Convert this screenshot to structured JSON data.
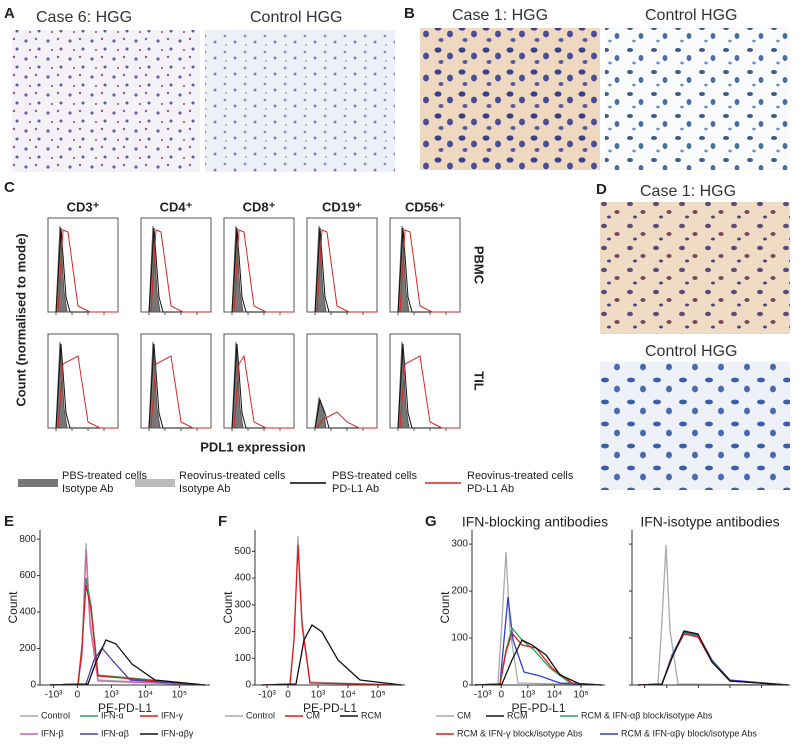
{
  "panel_labels": [
    "A",
    "B",
    "C",
    "D",
    "E",
    "F",
    "G"
  ],
  "A": {
    "titles": [
      "Case 6: HGG",
      "Control HGG"
    ]
  },
  "B": {
    "titles": [
      "Case 1: HGG",
      "Control HGG"
    ]
  },
  "C": {
    "columns": [
      "CD3⁺",
      "CD4⁺",
      "CD8⁺",
      "CD19⁺",
      "CD56⁺"
    ],
    "rows": [
      "PBMC",
      "TIL"
    ],
    "y_label": "Count (normalised to mode)",
    "x_label": "PDL1 expression",
    "legend": [
      {
        "lines": [
          "PBS-treated cells",
          "Isotype Ab"
        ],
        "color": "#777"
      },
      {
        "lines": [
          "Reovirus-treated cells",
          "Isotype Ab"
        ],
        "color": "#bbb"
      },
      {
        "lines": [
          "PBS-treated cells",
          "PD-L1 Ab"
        ],
        "color": "#000"
      },
      {
        "lines": [
          "Reovirus-treated cells",
          "PD-L1 Ab"
        ],
        "color": "#d62728"
      }
    ]
  },
  "D": {
    "titles": [
      "Case 1: HGG",
      "Control HGG"
    ]
  },
  "E": {
    "y_label": "Count",
    "x_label": "PE-PD-L1",
    "ylim": [
      0,
      850
    ],
    "yticks": [
      0,
      200,
      400,
      600,
      800
    ],
    "xticks": [
      "-10³",
      "0",
      "10³",
      "10⁴",
      "10⁵"
    ],
    "legend": [
      {
        "name": "Control",
        "color": "#aaaaaa"
      },
      {
        "name": "IFN-α",
        "color": "#2ca25f"
      },
      {
        "name": "IFN-γ",
        "color": "#e31a1c"
      },
      {
        "name": "IFN-β",
        "color": "#d45fb0"
      },
      {
        "name": "IFN-αβ",
        "color": "#4b3fa8"
      },
      {
        "name": "IFN-αβγ",
        "color": "#111111"
      }
    ]
  },
  "F": {
    "y_label": "Count",
    "x_label": "PE-PD-L1",
    "ylim": [
      0,
      580
    ],
    "yticks": [
      0,
      100,
      200,
      300,
      400,
      500
    ],
    "xticks": [
      "-10³",
      "0",
      "10³",
      "10⁴",
      "10⁵"
    ],
    "legend": [
      {
        "name": "Control",
        "color": "#aaaaaa"
      },
      {
        "name": "CM",
        "color": "#e31a1c"
      },
      {
        "name": "RCM",
        "color": "#111111"
      }
    ]
  },
  "G": {
    "titles": [
      "IFN-blocking antibodies",
      "IFN-isotype antibodies"
    ],
    "y_label": "Count",
    "x_label": "PE-PD-L1",
    "ylim": [
      0,
      330
    ],
    "yticks": [
      0,
      100,
      200,
      300
    ],
    "xticks": [
      "-10³",
      "0",
      "10³",
      "10⁴",
      "10⁵"
    ],
    "legend": [
      {
        "name": "CM",
        "color": "#aaaaaa"
      },
      {
        "name": "RCM",
        "color": "#111111"
      },
      {
        "name": "RCM & IFN-αβ block/isotype Abs",
        "color": "#2ca25f"
      },
      {
        "name": "RCM & IFN-γ block/isotype Abs",
        "color": "#e31a1c"
      },
      {
        "name": "RCM & IFN-αβγ block/isotype Abs",
        "color": "#2b3fd0"
      }
    ]
  }
}
